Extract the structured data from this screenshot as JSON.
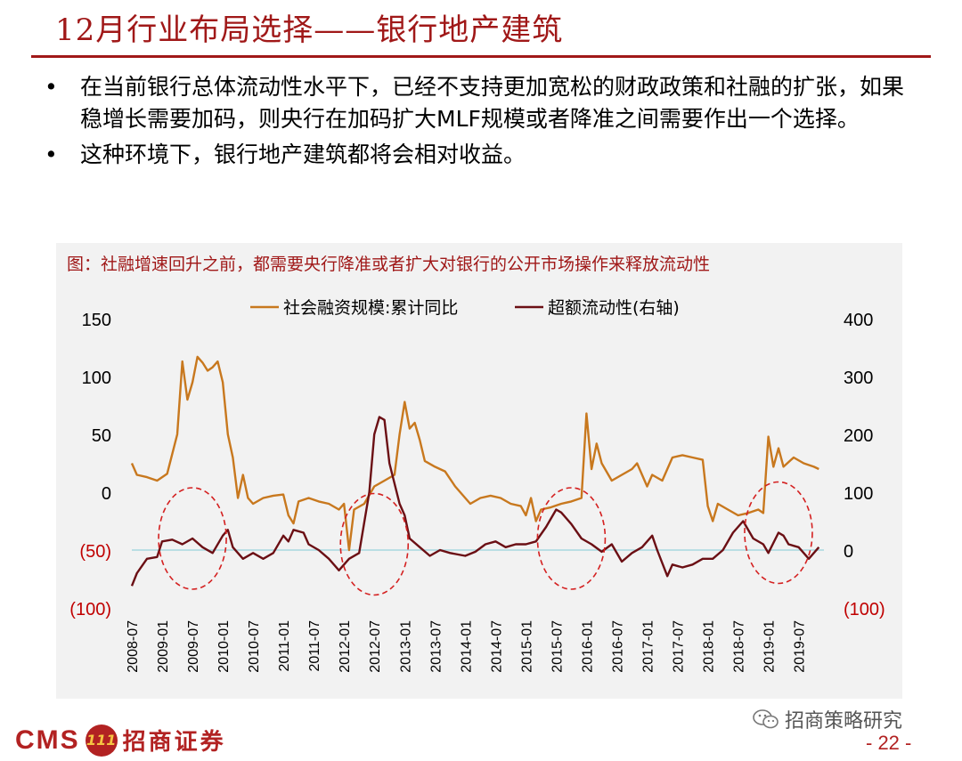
{
  "header": {
    "title": "12月行业布局选择——银行地产建筑"
  },
  "bullets": [
    "在当前银行总体流动性水平下，已经不支持更加宽松的财政政策和社融的扩张，如果稳增长需要加码，则央行在加码扩大MLF规模或者降准之间需要作出一个选择。",
    "这种环境下，银行地产建筑都将会相对收益。"
  ],
  "bullet_symbol": "•",
  "chart_data": {
    "type": "line",
    "title": "图：社融增速回升之前，都需要央行降准或者扩大对银行的公开市场操作来释放流动性",
    "legend_placement": "top",
    "left_axis": {
      "range": [
        -100,
        150
      ],
      "ticks": [
        "150",
        "100",
        "50",
        "0",
        "(50)",
        "(100)"
      ],
      "tick_values": [
        150,
        100,
        50,
        0,
        -50,
        -100
      ]
    },
    "right_axis": {
      "range": [
        -100,
        400
      ],
      "ticks": [
        "400",
        "300",
        "200",
        "100",
        "0",
        "(100)"
      ],
      "tick_values": [
        400,
        300,
        200,
        100,
        0,
        -100
      ]
    },
    "x_range": [
      "2008-07",
      "2019-12"
    ],
    "x_ticks": [
      "2008-07",
      "2009-01",
      "2009-07",
      "2010-01",
      "2010-07",
      "2011-01",
      "2011-07",
      "2012-01",
      "2012-07",
      "2013-01",
      "2013-07",
      "2014-01",
      "2014-07",
      "2015-01",
      "2015-07",
      "2016-01",
      "2016-07",
      "2017-01",
      "2017-07",
      "2018-01",
      "2018-07",
      "2019-01",
      "2019-07"
    ],
    "series": [
      {
        "name": "社会融资规模:累计同比",
        "color": "#C8781E",
        "axis": "left",
        "points": [
          [
            "2008-07",
            25
          ],
          [
            "2008-08",
            15
          ],
          [
            "2008-10",
            13
          ],
          [
            "2008-12",
            10
          ],
          [
            "2009-02",
            16
          ],
          [
            "2009-04",
            50
          ],
          [
            "2009-05",
            113
          ],
          [
            "2009-06",
            80
          ],
          [
            "2009-07",
            95
          ],
          [
            "2009-08",
            117
          ],
          [
            "2009-09",
            112
          ],
          [
            "2009-10",
            105
          ],
          [
            "2009-11",
            108
          ],
          [
            "2009-12",
            113
          ],
          [
            "2010-01",
            95
          ],
          [
            "2010-02",
            50
          ],
          [
            "2010-03",
            30
          ],
          [
            "2010-04",
            -5
          ],
          [
            "2010-05",
            15
          ],
          [
            "2010-06",
            -5
          ],
          [
            "2010-07",
            -10
          ],
          [
            "2010-09",
            -5
          ],
          [
            "2010-11",
            -3
          ],
          [
            "2011-01",
            -2
          ],
          [
            "2011-02",
            -20
          ],
          [
            "2011-03",
            -27
          ],
          [
            "2011-04",
            -8
          ],
          [
            "2011-06",
            -5
          ],
          [
            "2011-08",
            -8
          ],
          [
            "2011-10",
            -10
          ],
          [
            "2011-12",
            -15
          ],
          [
            "2012-01",
            -10
          ],
          [
            "2012-02",
            -50
          ],
          [
            "2012-03",
            -15
          ],
          [
            "2012-05",
            -10
          ],
          [
            "2012-07",
            5
          ],
          [
            "2012-09",
            10
          ],
          [
            "2012-11",
            15
          ],
          [
            "2012-12",
            50
          ],
          [
            "2013-01",
            78
          ],
          [
            "2013-02",
            55
          ],
          [
            "2013-03",
            60
          ],
          [
            "2013-04",
            45
          ],
          [
            "2013-05",
            27
          ],
          [
            "2013-07",
            22
          ],
          [
            "2013-09",
            18
          ],
          [
            "2013-11",
            5
          ],
          [
            "2014-01",
            -5
          ],
          [
            "2014-02",
            -10
          ],
          [
            "2014-04",
            -5
          ],
          [
            "2014-06",
            -3
          ],
          [
            "2014-08",
            -5
          ],
          [
            "2014-10",
            -10
          ],
          [
            "2014-12",
            -12
          ],
          [
            "2015-01",
            -20
          ],
          [
            "2015-02",
            -5
          ],
          [
            "2015-03",
            -25
          ],
          [
            "2015-04",
            -15
          ],
          [
            "2015-06",
            -13
          ],
          [
            "2015-08",
            -10
          ],
          [
            "2015-10",
            -8
          ],
          [
            "2015-12",
            -5
          ],
          [
            "2016-01",
            68
          ],
          [
            "2016-02",
            20
          ],
          [
            "2016-03",
            42
          ],
          [
            "2016-04",
            25
          ],
          [
            "2016-06",
            10
          ],
          [
            "2016-08",
            15
          ],
          [
            "2016-10",
            20
          ],
          [
            "2016-11",
            25
          ],
          [
            "2017-01",
            5
          ],
          [
            "2017-02",
            15
          ],
          [
            "2017-04",
            10
          ],
          [
            "2017-06",
            30
          ],
          [
            "2017-08",
            32
          ],
          [
            "2017-10",
            30
          ],
          [
            "2017-12",
            28
          ],
          [
            "2018-01",
            -12
          ],
          [
            "2018-02",
            -25
          ],
          [
            "2018-03",
            -10
          ],
          [
            "2018-05",
            -15
          ],
          [
            "2018-07",
            -20
          ],
          [
            "2018-09",
            -18
          ],
          [
            "2018-11",
            -15
          ],
          [
            "2018-12",
            -18
          ],
          [
            "2019-01",
            48
          ],
          [
            "2019-02",
            22
          ],
          [
            "2019-03",
            38
          ],
          [
            "2019-04",
            22
          ],
          [
            "2019-06",
            30
          ],
          [
            "2019-08",
            25
          ],
          [
            "2019-10",
            22
          ],
          [
            "2019-11",
            20
          ]
        ]
      },
      {
        "name": "超额流动性(右轴)",
        "color": "#6B0F14",
        "axis": "right",
        "points": [
          [
            "2008-07",
            -62
          ],
          [
            "2008-08",
            -40
          ],
          [
            "2008-10",
            -15
          ],
          [
            "2008-12",
            -12
          ],
          [
            "2009-01",
            15
          ],
          [
            "2009-03",
            18
          ],
          [
            "2009-05",
            10
          ],
          [
            "2009-07",
            20
          ],
          [
            "2009-09",
            5
          ],
          [
            "2009-11",
            -5
          ],
          [
            "2010-01",
            25
          ],
          [
            "2010-02",
            35
          ],
          [
            "2010-03",
            5
          ],
          [
            "2010-04",
            -5
          ],
          [
            "2010-05",
            -15
          ],
          [
            "2010-07",
            -5
          ],
          [
            "2010-09",
            -15
          ],
          [
            "2010-11",
            -5
          ],
          [
            "2011-01",
            25
          ],
          [
            "2011-02",
            15
          ],
          [
            "2011-03",
            35
          ],
          [
            "2011-05",
            30
          ],
          [
            "2011-06",
            10
          ],
          [
            "2011-08",
            0
          ],
          [
            "2011-10",
            -15
          ],
          [
            "2011-12",
            -35
          ],
          [
            "2012-01",
            -25
          ],
          [
            "2012-02",
            -15
          ],
          [
            "2012-04",
            -5
          ],
          [
            "2012-06",
            100
          ],
          [
            "2012-07",
            200
          ],
          [
            "2012-08",
            230
          ],
          [
            "2012-09",
            225
          ],
          [
            "2012-10",
            150
          ],
          [
            "2012-12",
            80
          ],
          [
            "2013-01",
            60
          ],
          [
            "2013-02",
            20
          ],
          [
            "2013-04",
            5
          ],
          [
            "2013-06",
            -10
          ],
          [
            "2013-08",
            0
          ],
          [
            "2013-10",
            -5
          ],
          [
            "2014-01",
            -10
          ],
          [
            "2014-03",
            -3
          ],
          [
            "2014-05",
            10
          ],
          [
            "2014-07",
            15
          ],
          [
            "2014-09",
            5
          ],
          [
            "2014-11",
            10
          ],
          [
            "2015-01",
            10
          ],
          [
            "2015-03",
            15
          ],
          [
            "2015-05",
            40
          ],
          [
            "2015-07",
            70
          ],
          [
            "2015-08",
            65
          ],
          [
            "2015-10",
            45
          ],
          [
            "2015-12",
            20
          ],
          [
            "2016-02",
            10
          ],
          [
            "2016-04",
            -3
          ],
          [
            "2016-06",
            10
          ],
          [
            "2016-08",
            -20
          ],
          [
            "2016-10",
            -5
          ],
          [
            "2016-12",
            5
          ],
          [
            "2017-02",
            25
          ],
          [
            "2017-03",
            0
          ],
          [
            "2017-05",
            -45
          ],
          [
            "2017-06",
            -25
          ],
          [
            "2017-08",
            -30
          ],
          [
            "2017-10",
            -25
          ],
          [
            "2017-12",
            -15
          ],
          [
            "2018-02",
            -15
          ],
          [
            "2018-04",
            0
          ],
          [
            "2018-06",
            30
          ],
          [
            "2018-08",
            50
          ],
          [
            "2018-10",
            20
          ],
          [
            "2018-12",
            10
          ],
          [
            "2019-01",
            -5
          ],
          [
            "2019-03",
            30
          ],
          [
            "2019-04",
            25
          ],
          [
            "2019-05",
            10
          ],
          [
            "2019-07",
            5
          ],
          [
            "2019-09",
            -15
          ],
          [
            "2019-11",
            5
          ]
        ]
      }
    ],
    "highlight_ellipses": [
      {
        "center_x": "2009-07",
        "center_y_left": -40
      },
      {
        "center_x": "2012-07",
        "center_y_left": -45
      },
      {
        "center_x": "2015-10",
        "center_y_left": -40
      },
      {
        "center_x": "2019-03",
        "center_y_left": -35
      }
    ],
    "reference_line": {
      "value_left": -50,
      "color": "#A8D8E0"
    },
    "grid": false,
    "positive_axis_color": "#000000",
    "negative_axis_color": "#C00000"
  },
  "footer": {
    "cms_text": "CMS",
    "logo_mark": "111",
    "brand_text": "招商证券",
    "wechat_text": "招商策略研究",
    "page_number": "- 22 -"
  }
}
